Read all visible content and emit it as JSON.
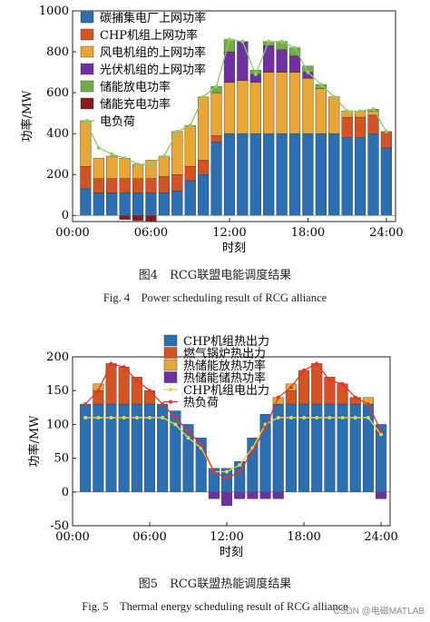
{
  "chart_data": [
    {
      "type": "bar",
      "stacked": true,
      "x": [
        "01:00",
        "02:00",
        "03:00",
        "04:00",
        "05:00",
        "06:00",
        "07:00",
        "08:00",
        "09:00",
        "10:00",
        "11:00",
        "12:00",
        "13:00",
        "14:00",
        "15:00",
        "16:00",
        "17:00",
        "18:00",
        "19:00",
        "20:00",
        "21:00",
        "22:00",
        "23:00",
        "24:00"
      ],
      "xticks": [
        "00:00",
        "06:00",
        "12:00",
        "18:00",
        "24:00"
      ],
      "xlim": [
        0,
        24.7
      ],
      "ylim": [
        -30,
        1000
      ],
      "yticks": [
        0,
        200,
        400,
        600,
        800,
        1000
      ],
      "xlabel": "时刻",
      "ylabel": "功率/MW",
      "legend": "top-left",
      "series": [
        {
          "name": "碳捕集电厂上网功率",
          "color": "#2a6fb2",
          "values": [
            130,
            110,
            110,
            110,
            110,
            110,
            110,
            120,
            170,
            200,
            360,
            400,
            400,
            400,
            400,
            400,
            400,
            400,
            400,
            400,
            380,
            380,
            400,
            330
          ]
        },
        {
          "name": "CHP机组上网功率",
          "color": "#d55322",
          "values": [
            110,
            70,
            70,
            70,
            70,
            70,
            80,
            80,
            70,
            70,
            30,
            0,
            0,
            0,
            0,
            0,
            0,
            0,
            0,
            0,
            100,
            100,
            90,
            80
          ]
        },
        {
          "name": "风电机组的上网功率",
          "color": "#e8a637",
          "values": [
            220,
            100,
            110,
            100,
            70,
            90,
            100,
            210,
            200,
            310,
            210,
            250,
            260,
            250,
            300,
            300,
            300,
            270,
            220,
            180,
            30,
            30,
            20,
            0
          ]
        },
        {
          "name": "光伏机组的上网功率",
          "color": "#7030a0",
          "values": [
            0,
            0,
            0,
            0,
            0,
            0,
            0,
            0,
            0,
            0,
            0,
            150,
            190,
            40,
            130,
            110,
            80,
            30,
            0,
            0,
            0,
            0,
            0,
            0
          ]
        },
        {
          "name": "储能放电功率",
          "color": "#70ad47",
          "values": [
            0,
            0,
            0,
            0,
            0,
            0,
            0,
            0,
            0,
            0,
            30,
            60,
            0,
            20,
            20,
            40,
            40,
            30,
            20,
            0,
            0,
            0,
            10,
            0
          ]
        },
        {
          "name": "储能充电功率",
          "color": "#8b1a1a",
          "values": [
            0,
            0,
            0,
            -20,
            -25,
            -30,
            0,
            0,
            0,
            0,
            0,
            0,
            0,
            0,
            0,
            0,
            0,
            0,
            0,
            0,
            0,
            0,
            0,
            0
          ]
        }
      ],
      "line": {
        "name": "电负荷",
        "color": "#8cc96b",
        "values": [
          460,
          330,
          300,
          280,
          250,
          250,
          290,
          410,
          440,
          580,
          630,
          860,
          850,
          690,
          850,
          850,
          820,
          700,
          640,
          580,
          510,
          510,
          520,
          410
        ]
      }
    },
    {
      "type": "bar",
      "stacked": true,
      "x": [
        "01:00",
        "02:00",
        "03:00",
        "04:00",
        "05:00",
        "06:00",
        "07:00",
        "08:00",
        "09:00",
        "10:00",
        "11:00",
        "12:00",
        "13:00",
        "14:00",
        "15:00",
        "16:00",
        "17:00",
        "18:00",
        "19:00",
        "20:00",
        "21:00",
        "22:00",
        "23:00",
        "24:00"
      ],
      "xticks": [
        "00:00",
        "06:00",
        "12:00",
        "18:00",
        "24:00"
      ],
      "xlim": [
        0,
        24.7
      ],
      "ylim": [
        -50,
        200
      ],
      "yticks": [
        -50,
        0,
        50,
        100,
        150,
        200
      ],
      "xlabel": "时刻",
      "ylabel": "功率/MW",
      "legend": "top-center",
      "series": [
        {
          "name": "CHP机组热出力",
          "color": "#2a6fb2",
          "values": [
            130,
            130,
            130,
            130,
            130,
            130,
            130,
            120,
            100,
            80,
            35,
            35,
            45,
            80,
            115,
            130,
            130,
            130,
            130,
            130,
            130,
            130,
            130,
            100
          ]
        },
        {
          "name": "燃气锅炉热出力",
          "color": "#d55322",
          "values": [
            0,
            20,
            60,
            55,
            40,
            20,
            0,
            0,
            0,
            0,
            0,
            0,
            0,
            0,
            0,
            0,
            20,
            50,
            60,
            40,
            30,
            10,
            0,
            0
          ]
        },
        {
          "name": "热储能放热功率",
          "color": "#e8a637",
          "values": [
            0,
            10,
            0,
            0,
            0,
            0,
            0,
            0,
            0,
            0,
            0,
            0,
            0,
            0,
            0,
            10,
            10,
            0,
            0,
            0,
            0,
            0,
            10,
            0
          ]
        },
        {
          "name": "热储能储热功率",
          "color": "#7030a0",
          "values": [
            0,
            0,
            0,
            0,
            0,
            0,
            0,
            0,
            0,
            0,
            -10,
            -20,
            -10,
            -10,
            -10,
            -10,
            0,
            0,
            0,
            0,
            0,
            0,
            0,
            -10
          ]
        },
        {
          "name": "CHP机组电出力",
          "color": "#e0d84a",
          "kind": "line",
          "values": [
            110,
            110,
            110,
            110,
            110,
            110,
            110,
            100,
            80,
            65,
            30,
            30,
            40,
            65,
            100,
            110,
            110,
            110,
            110,
            110,
            110,
            110,
            110,
            85
          ]
        },
        {
          "name": "热负荷",
          "color": "#e2342a",
          "kind": "line",
          "values": [
            130,
            150,
            190,
            185,
            165,
            150,
            130,
            110,
            90,
            70,
            30,
            20,
            30,
            60,
            95,
            140,
            155,
            180,
            190,
            165,
            160,
            140,
            130,
            90
          ]
        }
      ]
    }
  ],
  "captions": {
    "fig4_cn": "图4　RCG联盟电能调度结果",
    "fig4_en": "Fig. 4　Power scheduling result of RCG alliance",
    "fig5_cn": "图5　RCG联盟热能调度结果",
    "fig5_en": "Fig. 5　Thermal energy scheduling result of RCG alliance"
  },
  "watermark": "CSDN @电磁MATLAB"
}
